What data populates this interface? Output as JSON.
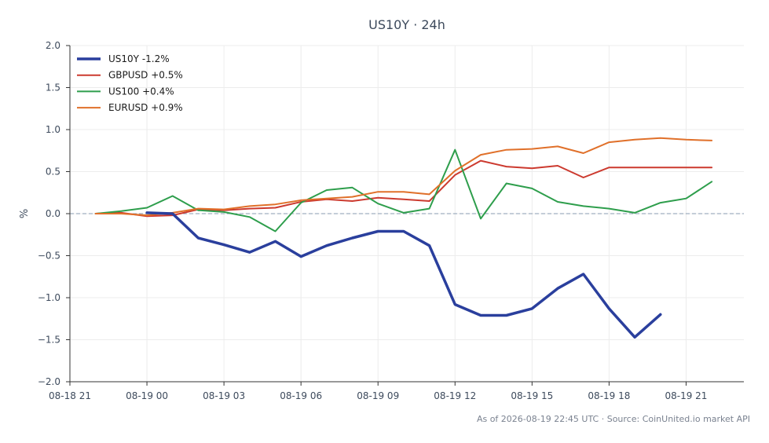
{
  "chart_data": {
    "type": "line",
    "title": "US10Y · 24h",
    "xlabel": "",
    "ylabel": "%",
    "ylim": [
      -2.0,
      2.0
    ],
    "xlim": [
      "2026-08-18 21:00",
      "2026-08-19 23:15"
    ],
    "grid": true,
    "legend_position": "top-left",
    "baseline": 0,
    "x_ticks": [
      {
        "t": "2026-08-18 21:00",
        "label": "08-18 21"
      },
      {
        "t": "2026-08-19 00:00",
        "label": "08-19 00"
      },
      {
        "t": "2026-08-19 03:00",
        "label": "08-19 03"
      },
      {
        "t": "2026-08-19 06:00",
        "label": "08-19 06"
      },
      {
        "t": "2026-08-19 09:00",
        "label": "08-19 09"
      },
      {
        "t": "2026-08-19 12:00",
        "label": "08-19 12"
      },
      {
        "t": "2026-08-19 15:00",
        "label": "08-19 15"
      },
      {
        "t": "2026-08-19 18:00",
        "label": "08-19 18"
      },
      {
        "t": "2026-08-19 21:00",
        "label": "08-19 21"
      }
    ],
    "y_ticks": [
      {
        "v": 2.0,
        "label": "2.0"
      },
      {
        "v": 1.5,
        "label": "1.5"
      },
      {
        "v": 1.0,
        "label": "1.0"
      },
      {
        "v": 0.5,
        "label": "0.5"
      },
      {
        "v": 0.0,
        "label": "0.0"
      },
      {
        "v": -0.5,
        "label": "−0.5"
      },
      {
        "v": -1.0,
        "label": "−1.0"
      },
      {
        "v": -1.5,
        "label": "−1.5"
      },
      {
        "v": -2.0,
        "label": "−2.0"
      }
    ],
    "series": [
      {
        "name": "US10Y -1.2%",
        "color": "#2a3f9d",
        "x": [
          "2026-08-19 00:00",
          "2026-08-19 01:00",
          "2026-08-19 02:00",
          "2026-08-19 03:00",
          "2026-08-19 04:00",
          "2026-08-19 05:00",
          "2026-08-19 06:00",
          "2026-08-19 07:00",
          "2026-08-19 08:00",
          "2026-08-19 09:00",
          "2026-08-19 10:00",
          "2026-08-19 11:00",
          "2026-08-19 12:00",
          "2026-08-19 13:00",
          "2026-08-19 14:00",
          "2026-08-19 15:00",
          "2026-08-19 16:00",
          "2026-08-19 17:00",
          "2026-08-19 18:00",
          "2026-08-19 19:00",
          "2026-08-19 20:00"
        ],
        "values": [
          0.01,
          0.0,
          -0.29,
          -0.37,
          -0.46,
          -0.33,
          -0.51,
          -0.38,
          -0.29,
          -0.21,
          -0.21,
          -0.38,
          -1.08,
          -1.21,
          -1.21,
          -1.13,
          -0.89,
          -0.72,
          -1.13,
          -1.47,
          -1.2
        ]
      },
      {
        "name": "GBPUSD +0.5%",
        "color": "#cc3a2f",
        "x": [
          "2026-08-18 22:00",
          "2026-08-18 23:00",
          "2026-08-19 00:00",
          "2026-08-19 01:00",
          "2026-08-19 02:00",
          "2026-08-19 03:00",
          "2026-08-19 04:00",
          "2026-08-19 05:00",
          "2026-08-19 06:00",
          "2026-08-19 07:00",
          "2026-08-19 08:00",
          "2026-08-19 09:00",
          "2026-08-19 10:00",
          "2026-08-19 11:00",
          "2026-08-19 12:00",
          "2026-08-19 13:00",
          "2026-08-19 14:00",
          "2026-08-19 15:00",
          "2026-08-19 16:00",
          "2026-08-19 17:00",
          "2026-08-19 18:00",
          "2026-08-19 19:00",
          "2026-08-19 20:00",
          "2026-08-19 21:00",
          "2026-08-19 22:00"
        ],
        "values": [
          0.0,
          0.01,
          -0.03,
          -0.02,
          0.05,
          0.04,
          0.06,
          0.07,
          0.14,
          0.17,
          0.15,
          0.19,
          0.17,
          0.15,
          0.46,
          0.63,
          0.56,
          0.54,
          0.57,
          0.43,
          0.55,
          0.55,
          0.55,
          0.55,
          0.55
        ]
      },
      {
        "name": "US100 +0.4%",
        "color": "#2e9e4c",
        "x": [
          "2026-08-18 22:00",
          "2026-08-18 23:00",
          "2026-08-19 00:00",
          "2026-08-19 01:00",
          "2026-08-19 02:00",
          "2026-08-19 03:00",
          "2026-08-19 04:00",
          "2026-08-19 05:00",
          "2026-08-19 06:00",
          "2026-08-19 07:00",
          "2026-08-19 08:00",
          "2026-08-19 09:00",
          "2026-08-19 10:00",
          "2026-08-19 11:00",
          "2026-08-19 12:00",
          "2026-08-19 13:00",
          "2026-08-19 14:00",
          "2026-08-19 15:00",
          "2026-08-19 16:00",
          "2026-08-19 17:00",
          "2026-08-19 18:00",
          "2026-08-19 19:00",
          "2026-08-19 20:00",
          "2026-08-19 21:00",
          "2026-08-19 22:00"
        ],
        "values": [
          0.0,
          0.03,
          0.07,
          0.21,
          0.04,
          0.02,
          -0.04,
          -0.21,
          0.13,
          0.28,
          0.31,
          0.12,
          0.01,
          0.06,
          0.76,
          -0.06,
          0.36,
          0.3,
          0.14,
          0.09,
          0.06,
          0.01,
          0.13,
          0.18,
          0.38
        ]
      },
      {
        "name": "EURUSD +0.9%",
        "color": "#e0702a",
        "x": [
          "2026-08-18 22:00",
          "2026-08-18 23:00",
          "2026-08-19 00:00",
          "2026-08-19 01:00",
          "2026-08-19 02:00",
          "2026-08-19 03:00",
          "2026-08-19 04:00",
          "2026-08-19 05:00",
          "2026-08-19 06:00",
          "2026-08-19 07:00",
          "2026-08-19 08:00",
          "2026-08-19 09:00",
          "2026-08-19 10:00",
          "2026-08-19 11:00",
          "2026-08-19 12:00",
          "2026-08-19 13:00",
          "2026-08-19 14:00",
          "2026-08-19 15:00",
          "2026-08-19 16:00",
          "2026-08-19 17:00",
          "2026-08-19 18:00",
          "2026-08-19 19:00",
          "2026-08-19 20:00",
          "2026-08-19 21:00",
          "2026-08-19 22:00"
        ],
        "values": [
          0.0,
          0.0,
          -0.02,
          0.01,
          0.06,
          0.05,
          0.09,
          0.11,
          0.16,
          0.18,
          0.2,
          0.26,
          0.26,
          0.23,
          0.51,
          0.7,
          0.76,
          0.77,
          0.8,
          0.72,
          0.85,
          0.88,
          0.9,
          0.88,
          0.87
        ]
      }
    ],
    "footer": "As of 2026-08-19 22:45 UTC · Source: CoinUnited.io market API"
  }
}
